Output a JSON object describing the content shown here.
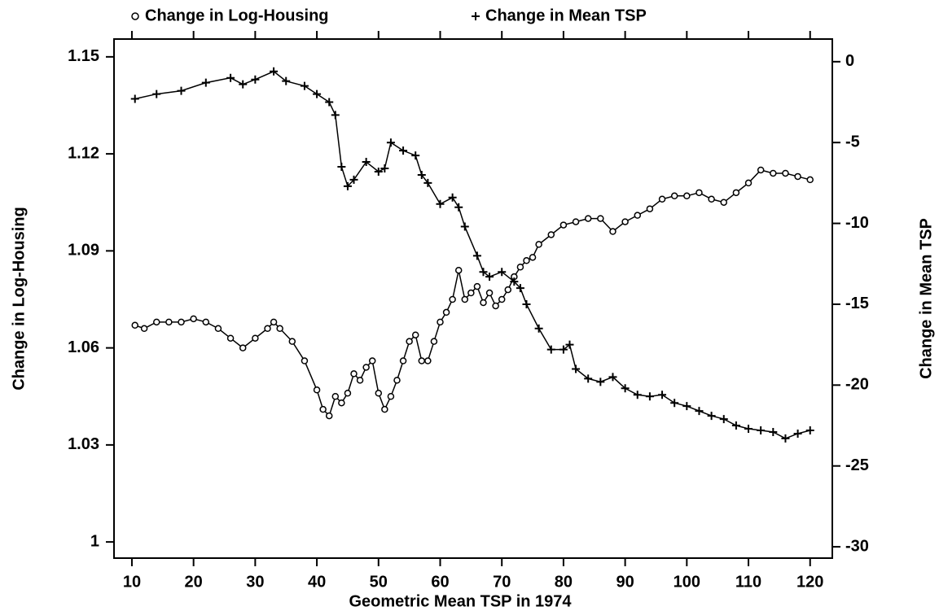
{
  "chart_data": {
    "type": "line",
    "x_label": "Geometric Mean TSP in 1974",
    "y_label": "Change in Log-Housing",
    "y2_label": "Change in Mean TSP",
    "xlim": [
      7.1,
      123.6
    ],
    "xticks": [
      10,
      20,
      30,
      40,
      50,
      60,
      70,
      80,
      90,
      100,
      110,
      120
    ],
    "ylim": [
      0.995,
      1.1555
    ],
    "yticks": [
      1,
      1.03,
      1.06,
      1.09,
      1.12,
      1.15
    ],
    "y2lim": [
      -30.7,
      1.4
    ],
    "y2ticks": [
      -30,
      -25,
      -20,
      -15,
      -10,
      -5,
      0
    ],
    "series": [
      {
        "name": "Change in Log-Housing",
        "color": "#000000",
        "marker": "circle",
        "x": [
          10.5,
          12,
          14,
          16,
          18,
          20,
          22,
          24,
          26,
          28,
          30,
          32,
          33,
          34,
          36,
          38,
          40,
          41,
          42,
          43,
          44,
          45,
          46,
          47,
          48,
          49,
          50,
          51,
          52,
          53,
          54,
          55,
          56,
          57,
          58,
          59,
          60,
          61,
          62,
          63,
          64,
          65,
          66,
          67,
          68,
          69,
          70,
          71,
          72,
          73,
          74,
          75,
          76,
          78,
          80,
          82,
          84,
          86,
          88,
          90,
          92,
          94,
          96,
          98,
          100,
          102,
          104,
          106,
          108,
          110,
          112,
          114,
          116,
          118,
          120
        ],
        "values": [
          1.067,
          1.066,
          1.068,
          1.068,
          1.068,
          1.069,
          1.068,
          1.066,
          1.063,
          1.06,
          1.063,
          1.066,
          1.068,
          1.066,
          1.062,
          1.056,
          1.047,
          1.041,
          1.039,
          1.045,
          1.043,
          1.046,
          1.052,
          1.05,
          1.054,
          1.056,
          1.046,
          1.041,
          1.045,
          1.05,
          1.056,
          1.062,
          1.064,
          1.056,
          1.056,
          1.062,
          1.068,
          1.071,
          1.075,
          1.084,
          1.075,
          1.077,
          1.079,
          1.074,
          1.077,
          1.073,
          1.075,
          1.078,
          1.082,
          1.085,
          1.087,
          1.088,
          1.092,
          1.095,
          1.098,
          1.099,
          1.1,
          1.1,
          1.096,
          1.099,
          1.101,
          1.103,
          1.106,
          1.107,
          1.107,
          1.108,
          1.106,
          1.105,
          1.108,
          1.111,
          1.115,
          1.114,
          1.114,
          1.113,
          1.112
        ]
      },
      {
        "name": "Change in Mean TSP",
        "color": "#000000",
        "marker": "plus",
        "axis": "y2",
        "x": [
          10.5,
          14,
          18,
          22,
          26,
          28,
          30,
          33,
          35,
          38,
          40,
          42,
          43,
          44,
          45,
          46,
          48,
          50,
          51,
          52,
          54,
          56,
          57,
          58,
          60,
          62,
          63,
          64,
          66,
          67,
          68,
          70,
          72,
          73,
          74,
          76,
          78,
          80,
          81,
          82,
          84,
          86,
          88,
          90,
          92,
          94,
          96,
          98,
          100,
          102,
          104,
          106,
          108,
          110,
          112,
          114,
          116,
          118,
          120
        ],
        "values": [
          -2.3,
          -2,
          -1.8,
          -1.3,
          -1,
          -1.4,
          -1.1,
          -0.6,
          -1.2,
          -1.5,
          -2,
          -2.5,
          -3.3,
          -6.5,
          -7.7,
          -7.3,
          -6.2,
          -6.8,
          -6.6,
          -5,
          -5.5,
          -5.8,
          -7,
          -7.5,
          -8.8,
          -8.4,
          -9,
          -10.2,
          -12,
          -13,
          -13.3,
          -13,
          -13.6,
          -14,
          -15,
          -16.5,
          -17.8,
          -17.8,
          -17.5,
          -19,
          -19.6,
          -19.8,
          -19.5,
          -20.2,
          -20.6,
          -20.7,
          -20.6,
          -21.1,
          -21.3,
          -21.6,
          -21.9,
          -22.1,
          -22.5,
          -22.7,
          -22.8,
          -22.9,
          -23.3,
          -23,
          -22.8
        ]
      }
    ]
  }
}
